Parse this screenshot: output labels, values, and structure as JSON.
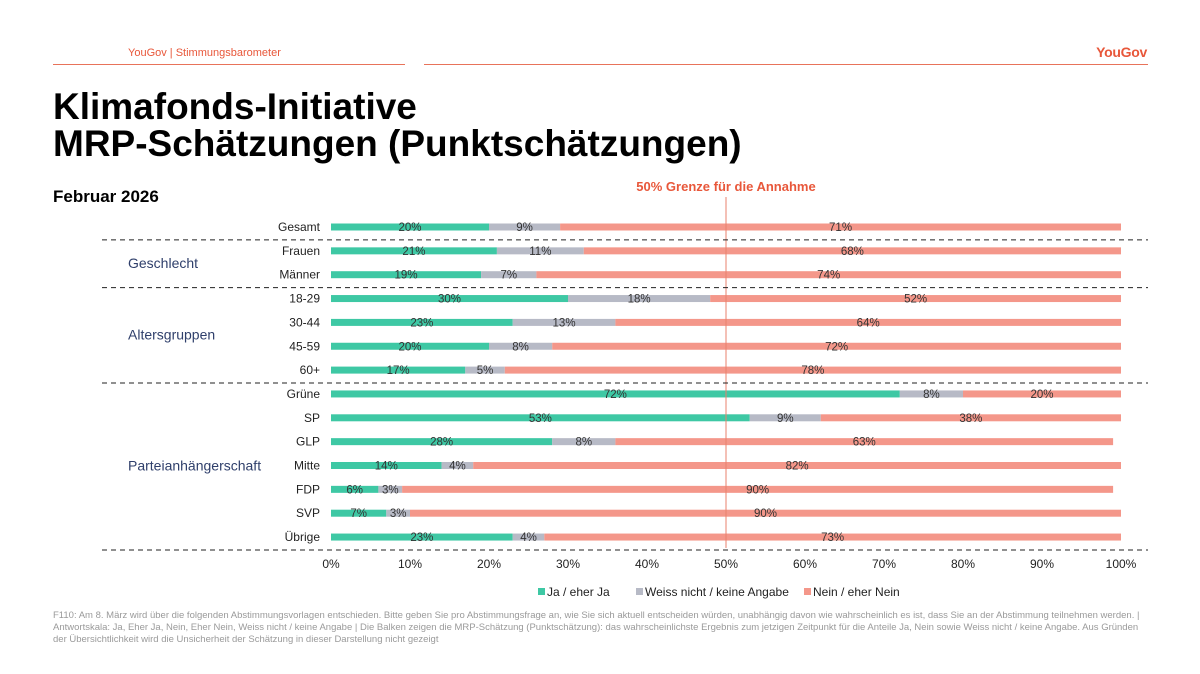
{
  "header": {
    "brandline": "YouGov | Stimmungsbarometer",
    "logo": "YouGov",
    "title_line1": "Klimafonds-Initiative",
    "title_line2": "MRP-Schätzungen (Punktschätzungen)",
    "subtitle": "Februar 2026"
  },
  "colors": {
    "ja": "#3ec8a4",
    "weiss": "#b7bac6",
    "nein": "#f4978a",
    "accent": "#e8573a",
    "group_label": "#2f3f6b"
  },
  "chart_data": {
    "type": "bar",
    "orientation": "horizontal",
    "stacked": true,
    "reference_line": {
      "value": 50,
      "label": "50% Grenze für die Annahme"
    },
    "xlim": [
      0,
      100
    ],
    "x_ticks": [
      "0%",
      "10%",
      "20%",
      "30%",
      "40%",
      "50%",
      "60%",
      "70%",
      "80%",
      "90%",
      "100%"
    ],
    "legend": [
      "Ja / eher Ja",
      "Weiss nicht / keine Angabe",
      "Nein / eher Nein"
    ],
    "groups": [
      {
        "label": "",
        "rows": [
          "Gesamt"
        ]
      },
      {
        "label": "Geschlecht",
        "rows": [
          "Frauen",
          "Männer"
        ]
      },
      {
        "label": "Altersgruppen",
        "rows": [
          "18-29",
          "30-44",
          "45-59",
          "60+"
        ]
      },
      {
        "label": "Parteianhängerschaft",
        "rows": [
          "Grüne",
          "SP",
          "GLP",
          "Mitte",
          "FDP",
          "SVP",
          "Übrige"
        ]
      }
    ],
    "categories": [
      "Gesamt",
      "Frauen",
      "Männer",
      "18-29",
      "30-44",
      "45-59",
      "60+",
      "Grüne",
      "SP",
      "GLP",
      "Mitte",
      "FDP",
      "SVP",
      "Übrige"
    ],
    "series": [
      {
        "name": "Ja / eher Ja",
        "values": [
          20,
          21,
          19,
          30,
          23,
          20,
          17,
          72,
          53,
          28,
          14,
          6,
          7,
          23
        ]
      },
      {
        "name": "Weiss nicht / keine Angabe",
        "values": [
          9,
          11,
          7,
          18,
          13,
          8,
          5,
          8,
          9,
          8,
          4,
          3,
          3,
          4
        ]
      },
      {
        "name": "Nein / eher Nein",
        "values": [
          71,
          68,
          74,
          52,
          64,
          72,
          78,
          20,
          38,
          63,
          82,
          90,
          90,
          73
        ]
      }
    ]
  },
  "footnote": "F110: Am 8. März wird über die folgenden Abstimmungsvorlagen entschieden. Bitte geben Sie pro Abstimmungsfrage an, wie Sie sich aktuell entscheiden würden, unabhängig davon wie wahrscheinlich es ist, dass Sie an der Abstimmung teilnehmen werden. | Antwortskala: Ja, Eher Ja, Nein, Eher Nein, Weiss nicht / keine Angabe | Die Balken zeigen die MRP-Schätzung (Punktschätzung): das wahrscheinlichste Ergebnis zum jetzigen Zeitpunkt für die Anteile Ja, Nein sowie Weiss nicht / keine Angabe. Aus Gründen der Übersichtlichkeit wird die Unsicherheit der Schätzung in dieser Darstellung nicht gezeigt"
}
